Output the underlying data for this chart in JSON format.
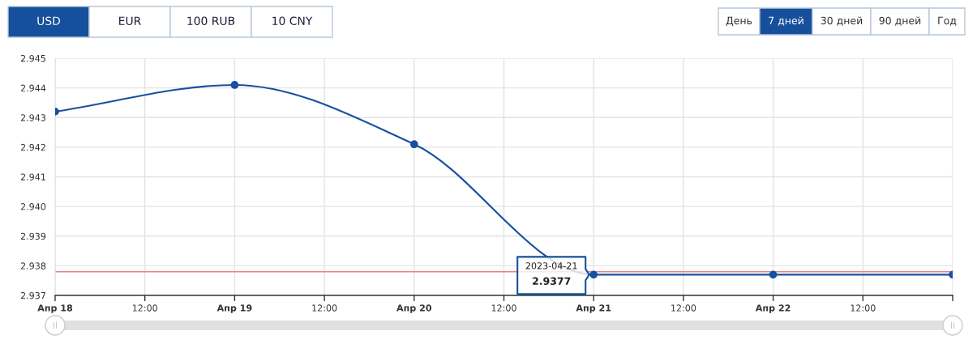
{
  "chart_data": {
    "type": "line",
    "x": [
      "2023-04-18",
      "2023-04-19",
      "2023-04-20",
      "2023-04-21",
      "2023-04-22",
      "2023-04-23"
    ],
    "series": [
      {
        "color": "#1650a0",
        "values": [
          2.9432,
          2.9441,
          2.9421,
          2.9377,
          2.9377,
          2.9377
        ]
      }
    ],
    "xlim": [
      "2023-04-18",
      "2023-04-23"
    ],
    "xticks": [
      {
        "value": "2023-04-18",
        "label": "Апр 18"
      },
      {
        "value": "2023-04-18T12:00",
        "label": "12:00"
      },
      {
        "value": "2023-04-19",
        "label": "Апр 19"
      },
      {
        "value": "2023-04-19T12:00",
        "label": "12:00"
      },
      {
        "value": "2023-04-20",
        "label": "Апр 20"
      },
      {
        "value": "2023-04-20T12:00",
        "label": "12:00"
      },
      {
        "value": "2023-04-21",
        "label": "Апр 21"
      },
      {
        "value": "2023-04-21T12:00",
        "label": "12:00"
      },
      {
        "value": "2023-04-22",
        "label": "Апр 22"
      },
      {
        "value": "2023-04-22T12:00",
        "label": "12:00"
      },
      {
        "value": "2023-04-23",
        "label": null
      }
    ],
    "ylim": [
      2.937,
      2.945
    ],
    "yticks": [
      2.937,
      2.938,
      2.939,
      {
        "value": 2.94,
        "label": "2.940"
      },
      2.941,
      2.942,
      2.943,
      2.944,
      2.945
    ],
    "grid": true,
    "marker": "circle",
    "line_style": "solid",
    "ref_lines": [
      {
        "axis": "y",
        "value": 2.9378,
        "color": "#f08080"
      }
    ],
    "annotations": [
      "USD",
      "EUR",
      "100 RUB",
      "10 CNY",
      "День",
      "7 дней",
      "30 дней",
      "90 дней",
      "Год",
      {
        "text": "2023-04-21",
        "x": "2023-04-21",
        "y": 2.9377
      },
      {
        "text": "2.9377",
        "x": "2023-04-21",
        "y": 2.9377
      }
    ]
  }
}
